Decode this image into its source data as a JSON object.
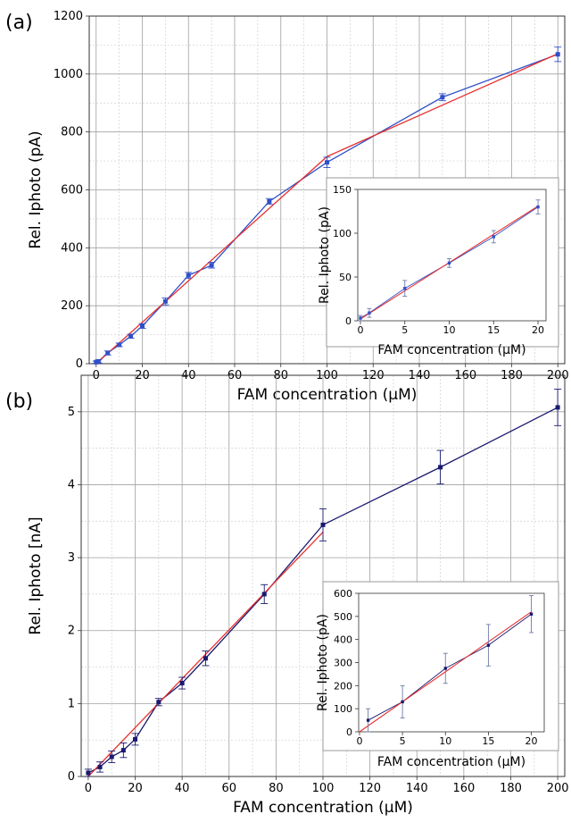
{
  "chart_data": [
    {
      "panel_label": "(a)",
      "type": "line",
      "xlabel": "FAM concentration (μM)",
      "ylabel": "Rel. Iphoto (pA)",
      "xlim": [
        -3,
        203
      ],
      "ylim": [
        0,
        1200
      ],
      "xticks": [
        0,
        20,
        40,
        60,
        80,
        100,
        120,
        140,
        160,
        180,
        200
      ],
      "yticks": [
        0,
        200,
        400,
        600,
        800,
        1000,
        1200
      ],
      "grid": true,
      "colors": {
        "data": "#3050c8",
        "fit": "#e83030"
      },
      "series": [
        {
          "x": [
            0,
            1,
            5,
            10,
            15,
            20,
            30,
            40,
            50,
            75,
            100,
            150,
            200
          ],
          "y": [
            5,
            8,
            37,
            65,
            95,
            130,
            215,
            305,
            340,
            560,
            695,
            920,
            1068
          ],
          "err": [
            4,
            5,
            7,
            6,
            7,
            8,
            12,
            10,
            10,
            10,
            18,
            12,
            25
          ]
        },
        {
          "x": [
            0,
            100,
            200
          ],
          "y": [
            0,
            715,
            1070
          ]
        }
      ],
      "inset": {
        "xlabel": "FAM concentration (μM)",
        "ylabel": "Rel. Iphoto (pA)",
        "xlim": [
          -0.3,
          20.9
        ],
        "ylim": [
          0,
          150
        ],
        "xticks": [
          0,
          5,
          10,
          15,
          20
        ],
        "yticks": [
          0,
          50,
          100,
          150
        ],
        "series": [
          {
            "x": [
              0,
              1,
              5,
              10,
              15,
              20
            ],
            "y": [
              3,
              9,
              37,
              66,
              96,
              130
            ],
            "err": [
              3,
              5,
              9,
              5,
              7,
              8
            ]
          },
          {
            "x": [
              0,
              20
            ],
            "y": [
              2,
              131
            ]
          }
        ]
      }
    },
    {
      "panel_label": "(b)",
      "type": "line",
      "xlabel": "FAM concentration (μM)",
      "ylabel": "Rel. Iphoto [nA]",
      "xlim": [
        -3,
        203
      ],
      "ylim": [
        0,
        5.5
      ],
      "xticks": [
        0,
        20,
        40,
        60,
        80,
        100,
        120,
        140,
        160,
        180,
        200
      ],
      "yticks": [
        0,
        1,
        2,
        3,
        4,
        5
      ],
      "grid": true,
      "colors": {
        "data": "#1a1a6e",
        "fit": "#e83030"
      },
      "series": [
        {
          "x": [
            0,
            5,
            10,
            15,
            20,
            30,
            40,
            50,
            75,
            100,
            150,
            200
          ],
          "y": [
            0.05,
            0.13,
            0.27,
            0.36,
            0.51,
            1.02,
            1.28,
            1.62,
            2.5,
            3.45,
            4.24,
            5.06
          ],
          "err": [
            0.05,
            0.07,
            0.08,
            0.1,
            0.08,
            0.05,
            0.08,
            0.1,
            0.13,
            0.22,
            0.23,
            0.25
          ]
        },
        {
          "x": [
            0,
            100
          ],
          "y": [
            0.0,
            3.35
          ]
        }
      ],
      "inset": {
        "xlabel": "FAM concentration (μM)",
        "ylabel": "Rel. Iphoto (pA)",
        "xlim": [
          -0.1,
          21.5
        ],
        "ylim": [
          0,
          600
        ],
        "xticks": [
          0,
          5,
          10,
          15,
          20
        ],
        "yticks": [
          0,
          100,
          200,
          300,
          400,
          500,
          600
        ],
        "series": [
          {
            "x": [
              1,
              5,
              10,
              15,
              20
            ],
            "y": [
              50,
              130,
              275,
              375,
              510
            ],
            "err": [
              50,
              70,
              65,
              90,
              80
            ]
          },
          {
            "x": [
              0,
              20
            ],
            "y": [
              0,
              520
            ]
          }
        ]
      }
    }
  ]
}
